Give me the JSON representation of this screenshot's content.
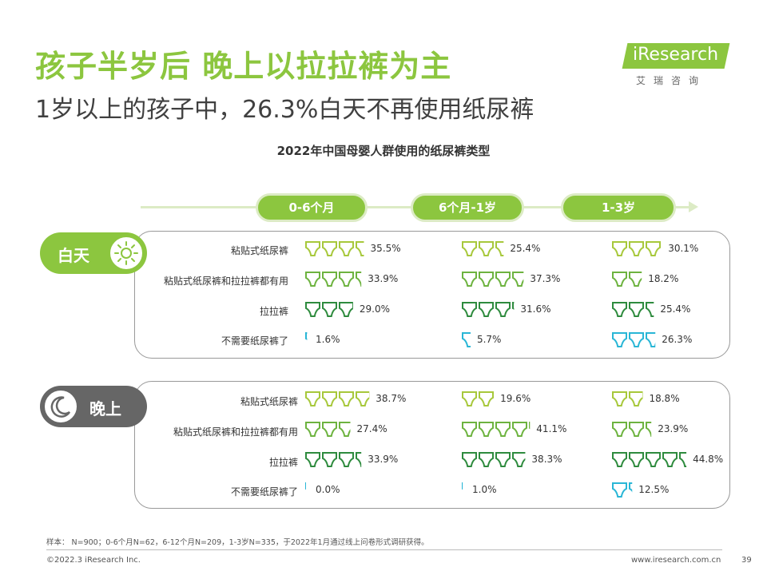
{
  "header": {
    "title": "孩子半岁后 晚上以拉拉裤为主",
    "subtitle": "1岁以上的孩子中，26.3%白天不再使用纸尿裤"
  },
  "logo": {
    "name": "iResearch",
    "sub": "艾瑞咨询"
  },
  "colors": {
    "accent": "#8cc63f",
    "light_green": "#dcebc5",
    "type1": "#a7c83b",
    "type2": "#6db33f",
    "type3": "#2e8b3e",
    "type4": "#29b6d6",
    "night": "#666666"
  },
  "chart_data": {
    "type": "bar",
    "title": "2022年中国母婴人群使用的纸尿裤类型",
    "age_groups": [
      "0-6个月",
      "6个月-1岁",
      "1-3岁"
    ],
    "categories": [
      "粘贴式纸尿裤",
      "粘贴式纸尿裤和拉拉裤都有用",
      "拉拉裤",
      "不需要纸尿裤了"
    ],
    "unit": "%",
    "panels": [
      {
        "name": "白天",
        "icon": "sun-icon",
        "series": [
          {
            "age": "0-6个月",
            "values": [
              35.5,
              33.9,
              29.0,
              1.6
            ],
            "labels": [
              "35.5%",
              "33.9%",
              "29.0%",
              "1.6%"
            ]
          },
          {
            "age": "6个月-1岁",
            "values": [
              25.4,
              37.3,
              31.6,
              5.7
            ],
            "labels": [
              "25.4%",
              "37.3%",
              "31.6%",
              "5.7%"
            ]
          },
          {
            "age": "1-3岁",
            "values": [
              30.1,
              18.2,
              25.4,
              26.3
            ],
            "labels": [
              "30.1%",
              "18.2%",
              "25.4%",
              "26.3%"
            ]
          }
        ]
      },
      {
        "name": "晚上",
        "icon": "moon-icon",
        "series": [
          {
            "age": "0-6个月",
            "values": [
              38.7,
              27.4,
              33.9,
              0.0
            ],
            "labels": [
              "38.7%",
              "27.4%",
              "33.9%",
              "0.0%"
            ]
          },
          {
            "age": "6个月-1岁",
            "values": [
              19.6,
              41.1,
              38.3,
              1.0
            ],
            "labels": [
              "19.6%",
              "41.1%",
              "38.3%",
              "1.0%"
            ]
          },
          {
            "age": "1-3岁",
            "values": [
              18.8,
              23.9,
              44.8,
              12.5
            ],
            "labels": [
              "18.8%",
              "23.9%",
              "44.8%",
              "12.5%"
            ]
          }
        ]
      }
    ]
  },
  "footer": {
    "note": "样本： N=900；0-6个月N=62，6-12个月N=209，1-3岁N=335，于2022年1月通过线上问卷形式调研获得。",
    "copyright": "©2022.3 iResearch Inc.",
    "website": "www.iresearch.com.cn",
    "page": "39"
  }
}
